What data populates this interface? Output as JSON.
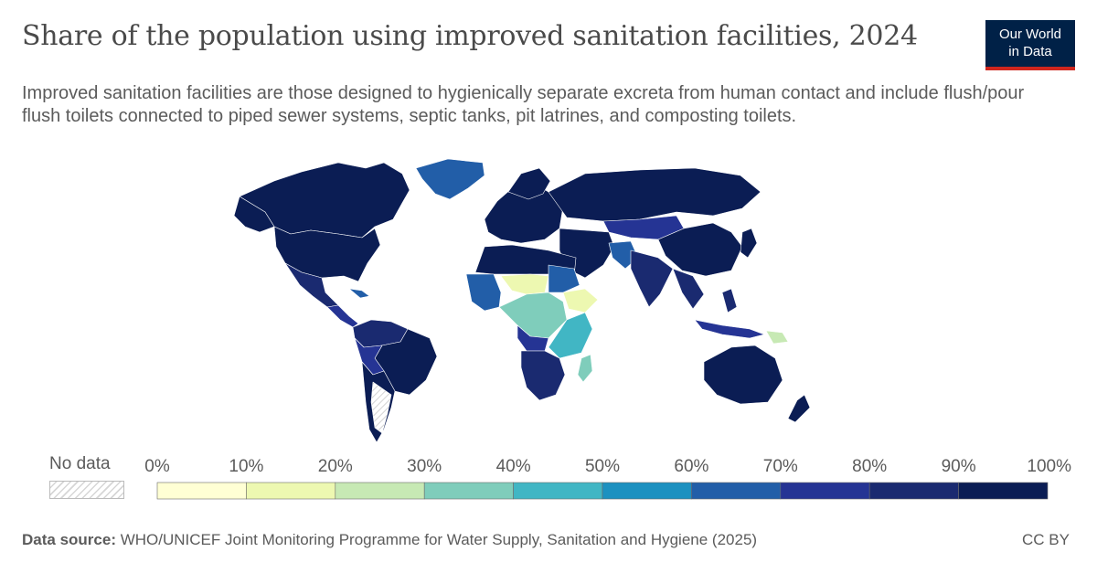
{
  "header": {
    "title": "Share of the population using improved sanitation facilities, 2024",
    "subtitle": "Improved sanitation facilities are those designed to hygienically separate excreta from human contact and include flush/pour flush toilets connected to piped sewer systems, septic tanks, pit latrines, and composting toilets."
  },
  "logo": {
    "line1": "Our World",
    "line2": "in Data"
  },
  "legend": {
    "no_data_label": "No data",
    "ticks": [
      "0%",
      "10%",
      "20%",
      "30%",
      "40%",
      "50%",
      "60%",
      "70%",
      "80%",
      "90%",
      "100%"
    ],
    "bin_colors": [
      "#ffffd4",
      "#edf8b1",
      "#c7e9b4",
      "#7fcdbb",
      "#41b6c4",
      "#1d91c0",
      "#225ea8",
      "#253494",
      "#1a2a70",
      "#0b1d54"
    ]
  },
  "footer": {
    "source_label": "Data source:",
    "source_text": "WHO/UNICEF Joint Monitoring Programme for Water Supply, Sanitation and Hygiene (2025)",
    "license": "CC BY"
  },
  "map_colors": {
    "very_high": "#0b1d54",
    "high": "#1a2a70",
    "upper_mid": "#253494",
    "mid": "#225ea8",
    "lower_mid": "#1d91c0",
    "low_mid": "#41b6c4",
    "low": "#7fcdbb",
    "very_low": "#c7e9b4",
    "lowest": "#edf8b1",
    "no_data": "#e6e6e6"
  }
}
